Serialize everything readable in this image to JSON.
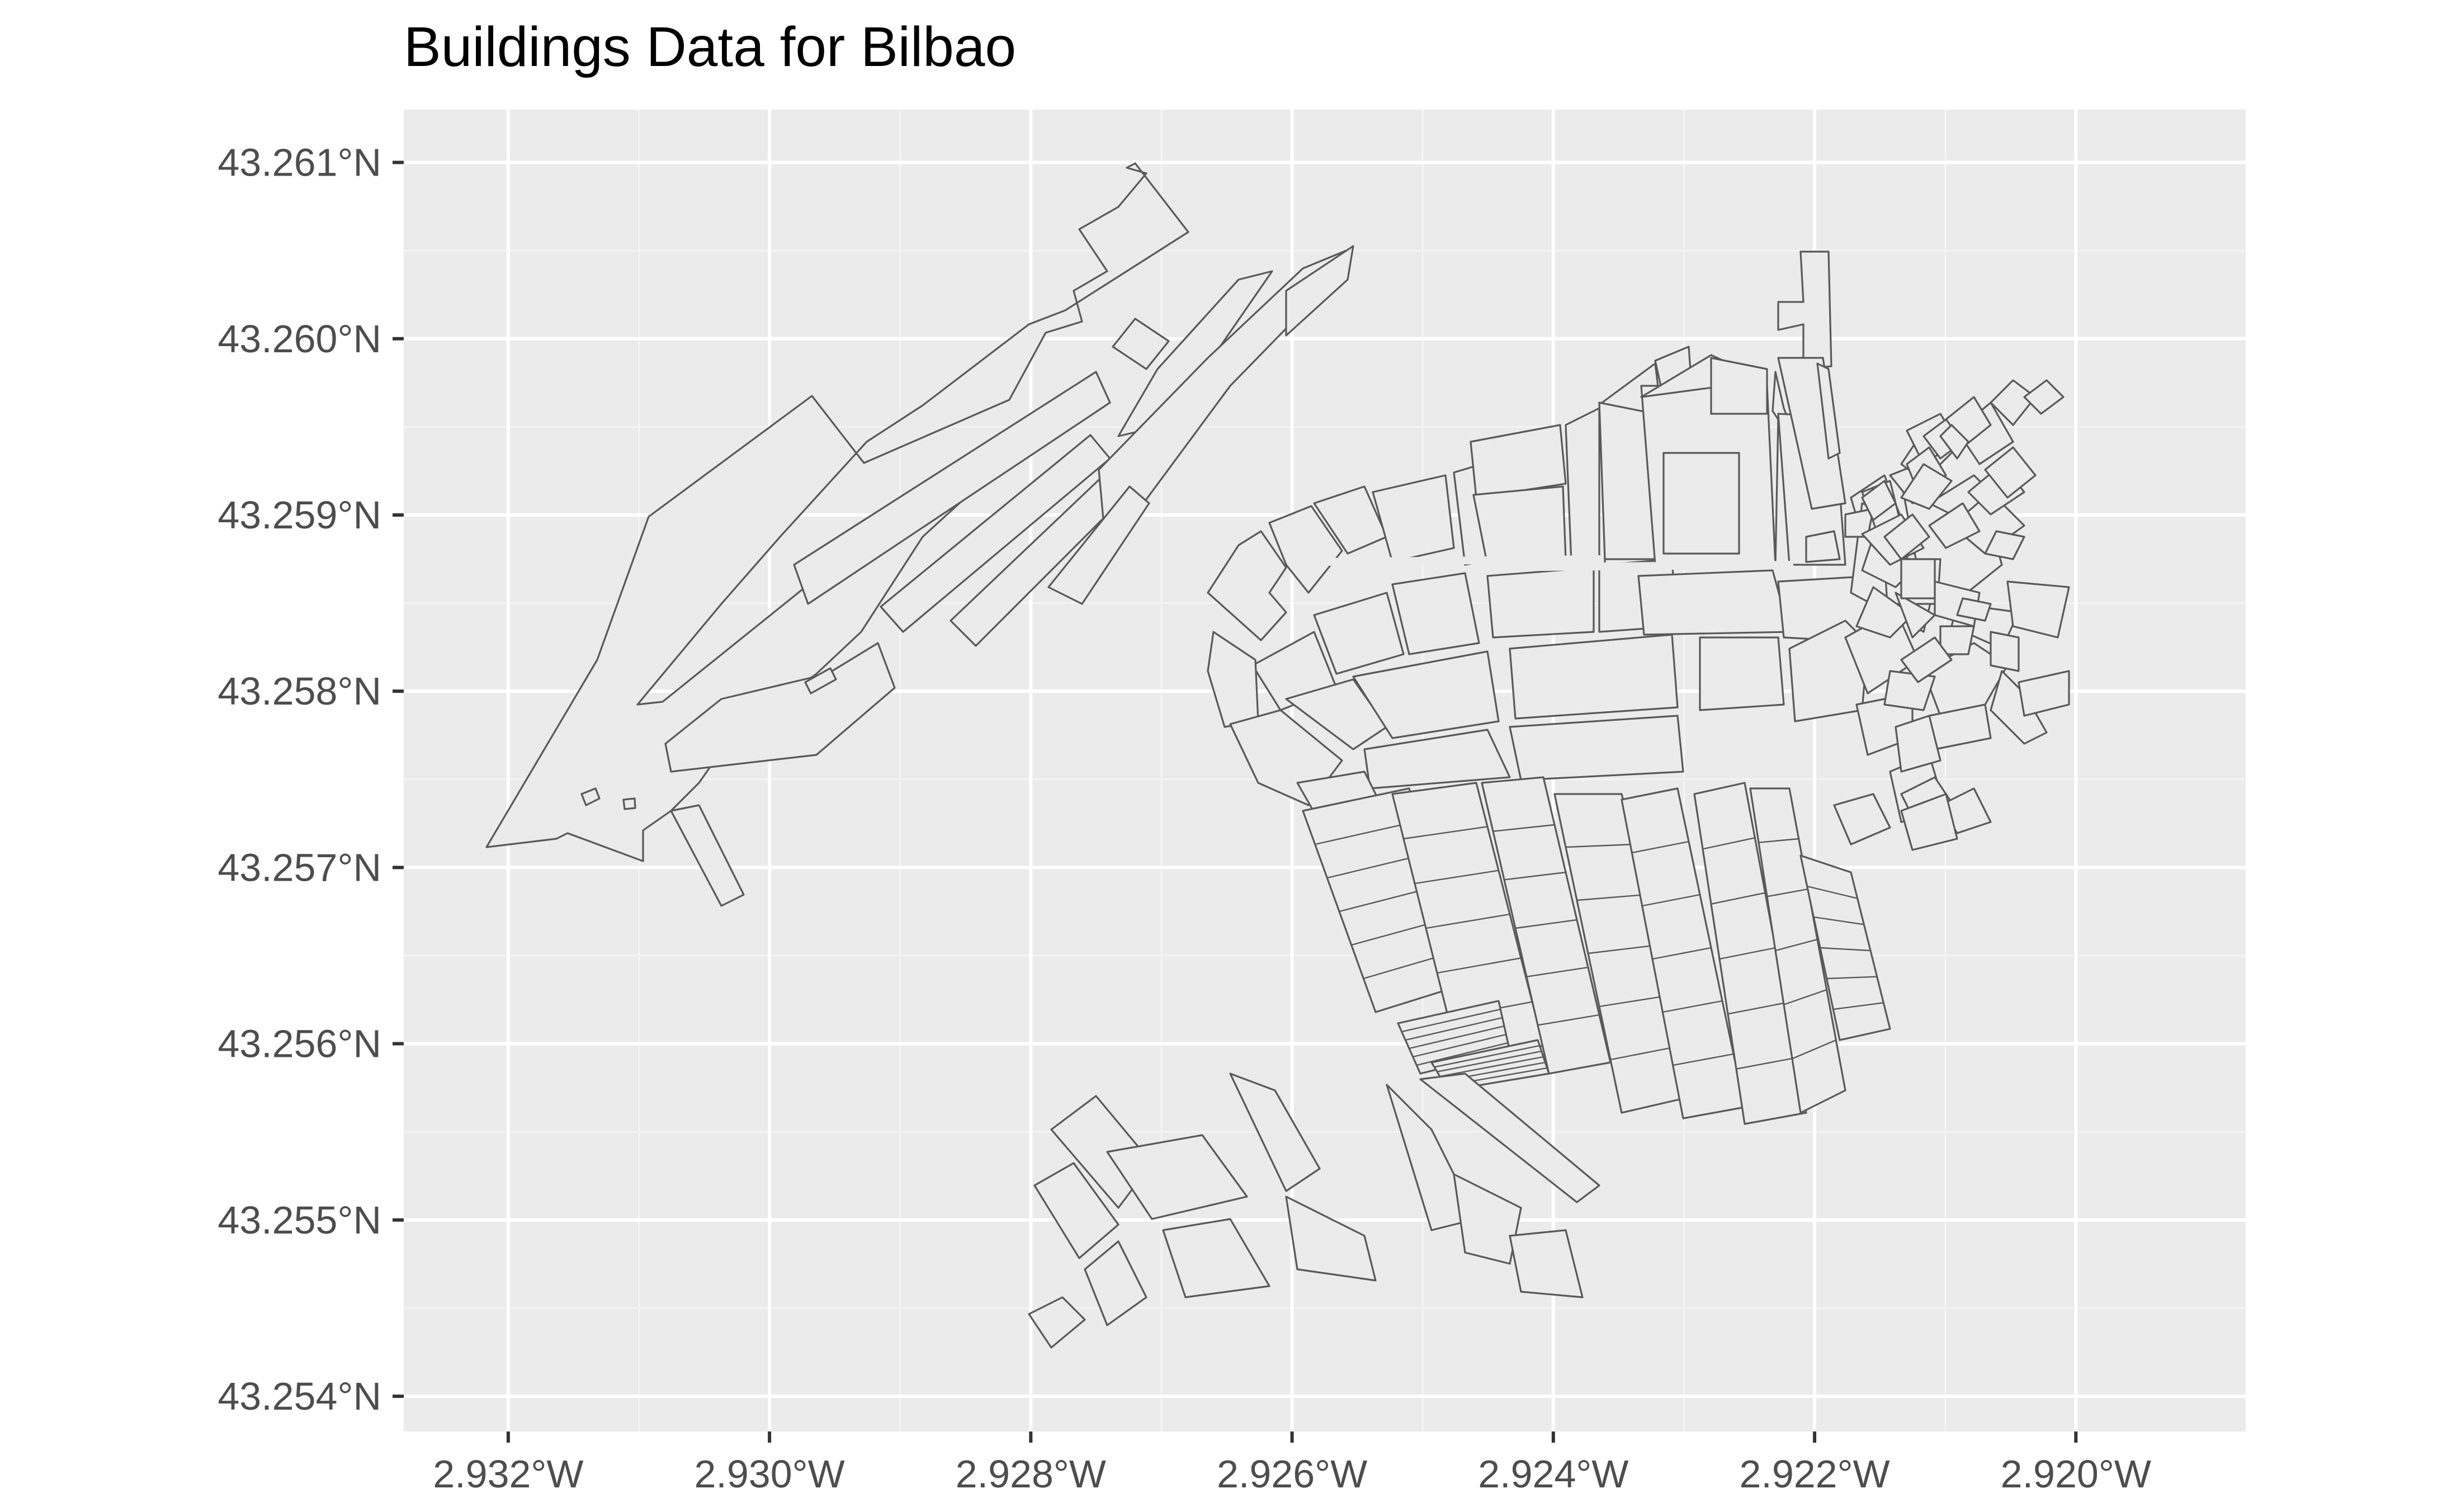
{
  "chart_data": {
    "type": "map",
    "title": "Buildings Data for Bilbao",
    "xlabel": "",
    "ylabel": "",
    "x_ticks": [
      {
        "value": -2.932,
        "label": "2.932°W"
      },
      {
        "value": -2.93,
        "label": "2.930°W"
      },
      {
        "value": -2.928,
        "label": "2.928°W"
      },
      {
        "value": -2.926,
        "label": "2.926°W"
      },
      {
        "value": -2.924,
        "label": "2.924°W"
      },
      {
        "value": -2.922,
        "label": "2.922°W"
      },
      {
        "value": -2.92,
        "label": "2.920°W"
      }
    ],
    "y_ticks": [
      {
        "value": 43.261,
        "label": "43.261°N"
      },
      {
        "value": 43.26,
        "label": "43.260°N"
      },
      {
        "value": 43.259,
        "label": "43.259°N"
      },
      {
        "value": 43.258,
        "label": "43.258°N"
      },
      {
        "value": 43.257,
        "label": "43.257°N"
      },
      {
        "value": 43.256,
        "label": "43.256°N"
      },
      {
        "value": 43.255,
        "label": "43.255°N"
      },
      {
        "value": 43.254,
        "label": "43.254°N"
      }
    ],
    "xlim": [
      -2.9328,
      -2.9187
    ],
    "ylim": [
      43.2538,
      43.2613
    ],
    "grid": true,
    "legend": "none",
    "colors": {
      "panel_background": "#ebebeb",
      "grid_lines": "#ffffff",
      "building_fill": "#ebebeb",
      "building_outline": "#595959",
      "tick_text": "#4d4d4d",
      "title_text": "#000000"
    }
  }
}
